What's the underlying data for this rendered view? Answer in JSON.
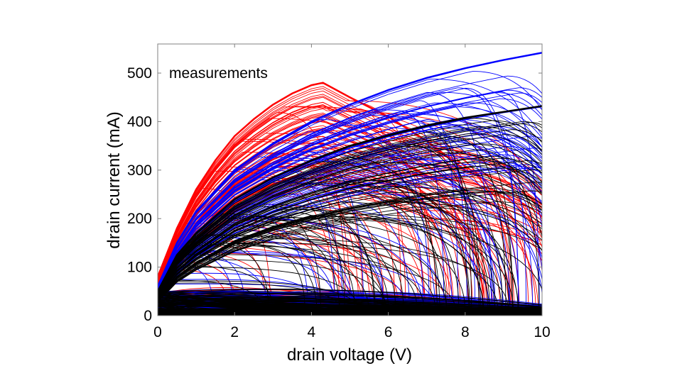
{
  "chart_data": {
    "type": "line",
    "annotation": "measurements",
    "xlabel": "drain voltage (V)",
    "ylabel": "drain current (mA)",
    "xlim": [
      0,
      10
    ],
    "ylim": [
      0,
      560
    ],
    "xticks": [
      "0",
      "2",
      "4",
      "6",
      "8",
      "10"
    ],
    "yticks": [
      "0",
      "100",
      "200",
      "300",
      "400",
      "500"
    ],
    "grid": false,
    "series": [
      {
        "color": "#ff0000",
        "envelope": {
          "x": [
            0,
            0.5,
            1,
            1.5,
            2,
            2.5,
            3,
            3.5,
            4,
            4.3,
            5,
            6,
            7,
            8
          ],
          "y": [
            80,
            180,
            260,
            320,
            370,
            405,
            435,
            458,
            475,
            480,
            450,
            410,
            360,
            300
          ]
        },
        "x_max": 10
      },
      {
        "color": "#0000ff",
        "envelope": {
          "x": [
            0,
            0.5,
            1,
            2,
            3,
            4,
            5,
            6,
            7,
            8,
            9,
            10
          ],
          "y": [
            60,
            150,
            215,
            300,
            355,
            400,
            435,
            465,
            490,
            510,
            527,
            542
          ]
        },
        "x_max": 10
      },
      {
        "color": "#000000",
        "envelope": {
          "x": [
            0,
            0.5,
            1,
            2,
            3,
            4,
            5,
            6,
            7,
            8,
            9,
            10
          ],
          "y": [
            50,
            125,
            170,
            240,
            285,
            320,
            350,
            372,
            392,
            408,
            420,
            432
          ]
        },
        "x_max": 10
      }
    ]
  }
}
